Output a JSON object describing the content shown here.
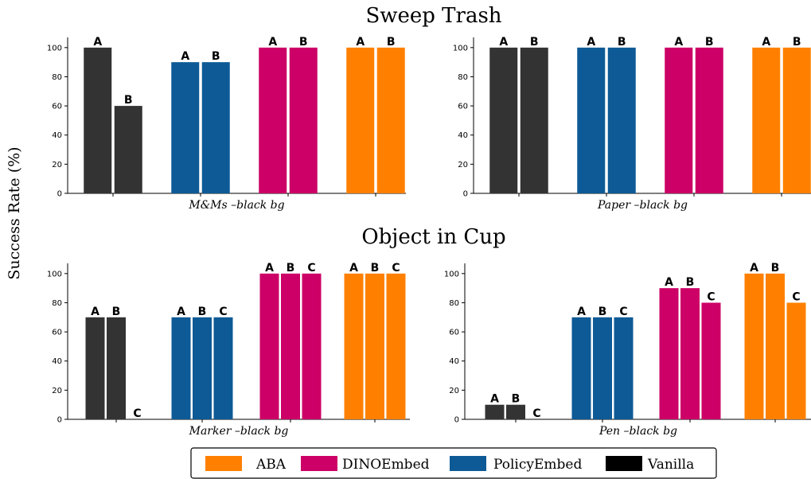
{
  "colors": {
    "ABA": "#ff8000",
    "DINOEmbed": "#cc0066",
    "PolicyEmbed": "#0d5a96",
    "Vanilla": "#333333"
  },
  "ylabel": "Success Rate (%)",
  "sections": [
    "Sweep Trash",
    "Object in Cup"
  ],
  "legend": [
    {
      "label": "ABA",
      "color": "#ff8000"
    },
    {
      "label": "DINOEmbed",
      "color": "#cc0066"
    },
    {
      "label": "PolicyEmbed",
      "color": "#0d5a96"
    },
    {
      "label": "Vanilla",
      "color": "#000000"
    }
  ],
  "chart_data": [
    {
      "type": "bar",
      "section": "Sweep Trash",
      "xlabel": "M&Ms –black bg",
      "ylim": [
        0,
        107
      ],
      "yticks": [
        0,
        20,
        40,
        60,
        80,
        100
      ],
      "groups": [
        "Vanilla",
        "PolicyEmbed",
        "DINOEmbed",
        "ABA"
      ],
      "bar_labels": [
        "A",
        "B"
      ],
      "series": [
        {
          "group": "Vanilla",
          "values": [
            100,
            60
          ]
        },
        {
          "group": "PolicyEmbed",
          "values": [
            90,
            90
          ]
        },
        {
          "group": "DINOEmbed",
          "values": [
            100,
            100
          ]
        },
        {
          "group": "ABA",
          "values": [
            100,
            100
          ]
        }
      ]
    },
    {
      "type": "bar",
      "section": "Sweep Trash",
      "xlabel": "Paper –black bg",
      "ylim": [
        0,
        107
      ],
      "yticks": [
        0,
        20,
        40,
        60,
        80,
        100
      ],
      "groups": [
        "Vanilla",
        "PolicyEmbed",
        "DINOEmbed",
        "ABA"
      ],
      "bar_labels": [
        "A",
        "B"
      ],
      "series": [
        {
          "group": "Vanilla",
          "values": [
            100,
            100
          ]
        },
        {
          "group": "PolicyEmbed",
          "values": [
            100,
            100
          ]
        },
        {
          "group": "DINOEmbed",
          "values": [
            100,
            100
          ]
        },
        {
          "group": "ABA",
          "values": [
            100,
            100
          ]
        }
      ]
    },
    {
      "type": "bar",
      "section": "Object in Cup",
      "xlabel": "Marker –black bg",
      "ylim": [
        0,
        107
      ],
      "yticks": [
        0,
        20,
        40,
        60,
        80,
        100
      ],
      "groups": [
        "Vanilla",
        "PolicyEmbed",
        "DINOEmbed",
        "ABA"
      ],
      "bar_labels": [
        "A",
        "B",
        "C"
      ],
      "series": [
        {
          "group": "Vanilla",
          "values": [
            70,
            70,
            0
          ]
        },
        {
          "group": "PolicyEmbed",
          "values": [
            70,
            70,
            70
          ]
        },
        {
          "group": "DINOEmbed",
          "values": [
            100,
            100,
            100
          ]
        },
        {
          "group": "ABA",
          "values": [
            100,
            100,
            100
          ]
        }
      ]
    },
    {
      "type": "bar",
      "section": "Object in Cup",
      "xlabel": "Pen –black bg",
      "ylim": [
        0,
        107
      ],
      "yticks": [
        0,
        20,
        40,
        60,
        80,
        100
      ],
      "groups": [
        "Vanilla",
        "PolicyEmbed",
        "DINOEmbed",
        "ABA"
      ],
      "bar_labels": [
        "A",
        "B",
        "C"
      ],
      "series": [
        {
          "group": "Vanilla",
          "values": [
            10,
            10,
            0
          ]
        },
        {
          "group": "PolicyEmbed",
          "values": [
            70,
            70,
            70
          ]
        },
        {
          "group": "DINOEmbed",
          "values": [
            90,
            90,
            80
          ]
        },
        {
          "group": "ABA",
          "values": [
            100,
            100,
            80
          ]
        }
      ]
    }
  ]
}
